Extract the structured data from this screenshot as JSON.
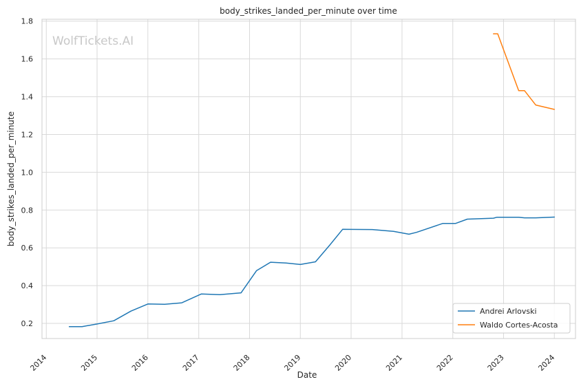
{
  "chart_data": {
    "type": "line",
    "title": "body_strikes_landed_per_minute over time",
    "xlabel": "Date",
    "ylabel": "body_strikes_landed_per_minute",
    "watermark": "WolfTickets.AI",
    "xlim": [
      "2013-12-01",
      "2024-06-01"
    ],
    "ylim": [
      0.12,
      1.81
    ],
    "x_ticks": [
      "2014",
      "2015",
      "2016",
      "2017",
      "2018",
      "2019",
      "2020",
      "2021",
      "2022",
      "2023",
      "2024"
    ],
    "y_ticks": [
      "0.2",
      "0.4",
      "0.6",
      "0.8",
      "1.0",
      "1.2",
      "1.4",
      "1.6",
      "1.8"
    ],
    "grid": true,
    "legend_position": "lower-right",
    "series": [
      {
        "name": "Andrei Arlovski",
        "color": "#1f77b4",
        "points": [
          [
            "2014-06-15",
            0.183
          ],
          [
            "2014-09-15",
            0.183
          ],
          [
            "2015-01-01",
            0.197
          ],
          [
            "2015-05-01",
            0.214
          ],
          [
            "2015-09-01",
            0.265
          ],
          [
            "2016-01-01",
            0.303
          ],
          [
            "2016-05-01",
            0.301
          ],
          [
            "2016-09-01",
            0.309
          ],
          [
            "2017-01-20",
            0.356
          ],
          [
            "2017-06-01",
            0.352
          ],
          [
            "2017-11-01",
            0.362
          ],
          [
            "2018-02-20",
            0.479
          ],
          [
            "2018-06-01",
            0.524
          ],
          [
            "2018-09-20",
            0.52
          ],
          [
            "2019-01-01",
            0.512
          ],
          [
            "2019-04-20",
            0.526
          ],
          [
            "2019-08-01",
            0.615
          ],
          [
            "2019-11-01",
            0.698
          ],
          [
            "2020-06-01",
            0.697
          ],
          [
            "2020-11-01",
            0.687
          ],
          [
            "2021-02-20",
            0.672
          ],
          [
            "2021-04-15",
            0.682
          ],
          [
            "2021-10-20",
            0.729
          ],
          [
            "2022-01-20",
            0.729
          ],
          [
            "2022-04-15",
            0.752
          ],
          [
            "2022-10-20",
            0.757
          ],
          [
            "2022-11-15",
            0.762
          ],
          [
            "2023-04-20",
            0.762
          ],
          [
            "2023-06-01",
            0.759
          ],
          [
            "2023-08-20",
            0.759
          ],
          [
            "2024-01-01",
            0.763
          ]
        ]
      },
      {
        "name": "Waldo Cortes-Acosta",
        "color": "#ff7f0e",
        "points": [
          [
            "2022-10-20",
            1.733
          ],
          [
            "2022-11-20",
            1.733
          ],
          [
            "2023-04-20",
            1.432
          ],
          [
            "2023-06-01",
            1.432
          ],
          [
            "2023-08-20",
            1.356
          ],
          [
            "2024-01-01",
            1.333
          ]
        ]
      }
    ]
  }
}
